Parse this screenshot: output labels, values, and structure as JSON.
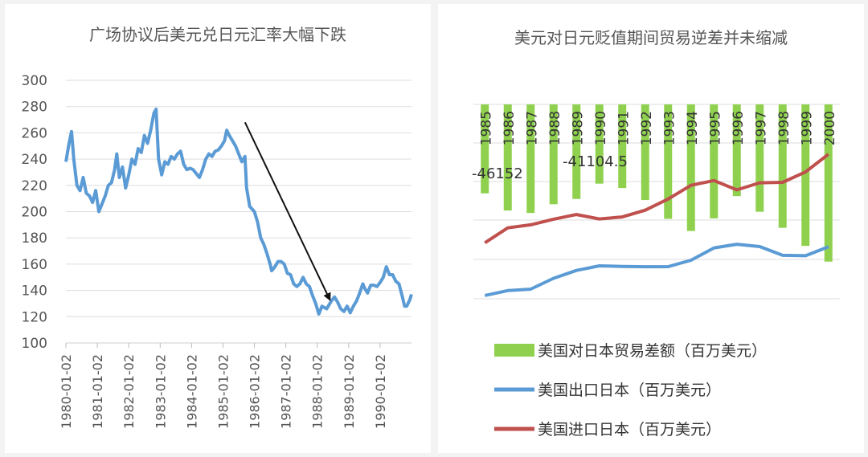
{
  "chart_data": [
    {
      "type": "line",
      "title": "广场协议后美元兑日元汇率大幅下跌",
      "xlabel": "",
      "ylabel": "",
      "ylim": [
        100,
        300
      ],
      "yticks": [
        100,
        120,
        140,
        160,
        180,
        200,
        220,
        240,
        260,
        280,
        300
      ],
      "xticks": [
        "1980-01-02",
        "1981-01-02",
        "1982-01-02",
        "1983-01-02",
        "1984-01-02",
        "1985-01-02",
        "1986-01-02",
        "1987-01-02",
        "1988-01-02",
        "1989-01-02",
        "1990-01-02"
      ],
      "grid": true,
      "series": [
        {
          "color": "#5b9bd5",
          "points": [
            [
              1980.0,
              238
            ],
            [
              1980.1,
              252
            ],
            [
              1980.18,
              261
            ],
            [
              1980.25,
              240
            ],
            [
              1980.35,
              220
            ],
            [
              1980.45,
              216
            ],
            [
              1980.55,
              226
            ],
            [
              1980.65,
              214
            ],
            [
              1980.75,
              212
            ],
            [
              1980.85,
              207
            ],
            [
              1980.95,
              216
            ],
            [
              1981.05,
              200
            ],
            [
              1981.15,
              206
            ],
            [
              1981.25,
              212
            ],
            [
              1981.35,
              220
            ],
            [
              1981.45,
              222
            ],
            [
              1981.55,
              232
            ],
            [
              1981.62,
              244
            ],
            [
              1981.7,
              226
            ],
            [
              1981.8,
              234
            ],
            [
              1981.9,
              218
            ],
            [
              1982.0,
              228
            ],
            [
              1982.1,
              240
            ],
            [
              1982.2,
              236
            ],
            [
              1982.3,
              248
            ],
            [
              1982.4,
              245
            ],
            [
              1982.5,
              258
            ],
            [
              1982.6,
              252
            ],
            [
              1982.7,
              262
            ],
            [
              1982.8,
              275
            ],
            [
              1982.87,
              278
            ],
            [
              1982.95,
              240
            ],
            [
              1983.05,
              228
            ],
            [
              1983.15,
              238
            ],
            [
              1983.25,
              236
            ],
            [
              1983.35,
              242
            ],
            [
              1983.45,
              240
            ],
            [
              1983.55,
              244
            ],
            [
              1983.65,
              246
            ],
            [
              1983.75,
              236
            ],
            [
              1983.85,
              232
            ],
            [
              1983.95,
              233
            ],
            [
              1984.05,
              232
            ],
            [
              1984.15,
              229
            ],
            [
              1984.25,
              226
            ],
            [
              1984.35,
              232
            ],
            [
              1984.45,
              240
            ],
            [
              1984.55,
              244
            ],
            [
              1984.65,
              242
            ],
            [
              1984.75,
              246
            ],
            [
              1984.85,
              247
            ],
            [
              1984.95,
              250
            ],
            [
              1985.05,
              254
            ],
            [
              1985.12,
              262
            ],
            [
              1985.2,
              258
            ],
            [
              1985.3,
              254
            ],
            [
              1985.4,
              250
            ],
            [
              1985.5,
              244
            ],
            [
              1985.6,
              238
            ],
            [
              1985.7,
              242
            ],
            [
              1985.75,
              218
            ],
            [
              1985.85,
              204
            ],
            [
              1986.0,
              200
            ],
            [
              1986.1,
              192
            ],
            [
              1986.2,
              180
            ],
            [
              1986.3,
              175
            ],
            [
              1986.4,
              168
            ],
            [
              1986.5,
              160
            ],
            [
              1986.55,
              155
            ],
            [
              1986.65,
              158
            ],
            [
              1986.75,
              162
            ],
            [
              1986.85,
              162
            ],
            [
              1986.95,
              160
            ],
            [
              1987.05,
              153
            ],
            [
              1987.15,
              152
            ],
            [
              1987.25,
              145
            ],
            [
              1987.35,
              143
            ],
            [
              1987.45,
              145
            ],
            [
              1987.55,
              150
            ],
            [
              1987.65,
              145
            ],
            [
              1987.75,
              143
            ],
            [
              1987.85,
              136
            ],
            [
              1987.95,
              130
            ],
            [
              1988.05,
              122
            ],
            [
              1988.15,
              128
            ],
            [
              1988.3,
              126
            ],
            [
              1988.45,
              132
            ],
            [
              1988.55,
              135
            ],
            [
              1988.65,
              131
            ],
            [
              1988.75,
              126
            ],
            [
              1988.85,
              124
            ],
            [
              1988.95,
              128
            ],
            [
              1989.05,
              123
            ],
            [
              1989.15,
              128
            ],
            [
              1989.25,
              132
            ],
            [
              1989.35,
              138
            ],
            [
              1989.45,
              145
            ],
            [
              1989.5,
              142
            ],
            [
              1989.6,
              138
            ],
            [
              1989.7,
              144
            ],
            [
              1989.8,
              144
            ],
            [
              1989.9,
              143
            ],
            [
              1990.0,
              146
            ],
            [
              1990.1,
              150
            ],
            [
              1990.2,
              158
            ],
            [
              1990.3,
              152
            ],
            [
              1990.4,
              152
            ],
            [
              1990.5,
              147
            ],
            [
              1990.6,
              145
            ],
            [
              1990.7,
              136
            ],
            [
              1990.78,
              128
            ],
            [
              1990.85,
              128
            ],
            [
              1990.95,
              133
            ],
            [
              1991.0,
              137
            ]
          ]
        }
      ],
      "annotations": [
        "arrow"
      ]
    },
    {
      "type": "bar+line",
      "title": "美元对日元贬值期间贸易逆差并未缩减",
      "categories": [
        "1985",
        "1986",
        "1987",
        "1988",
        "1989",
        "1990",
        "1991",
        "1992",
        "1993",
        "1994",
        "1995",
        "1996",
        "1997",
        "1998",
        "1999",
        "2000"
      ],
      "data_labels": [
        "-46152",
        "-41104.5"
      ],
      "legend_position": "bottom",
      "series": [
        {
          "name": "美国对日本贸易差额（百万美元）",
          "type": "bar",
          "color": "#8fd14f",
          "values": [
            -46152,
            -55029,
            -56326,
            -51794,
            -49059,
            -41104.5,
            -43385,
            -49601,
            -59355,
            -65669,
            -59137,
            -47580,
            -55686,
            -64014,
            -73398,
            -81555
          ]
        },
        {
          "name": "美国出口日本（百万美元）",
          "type": "line",
          "color": "#5b9bd5",
          "values": [
            22600,
            26900,
            28200,
            37700,
            44600,
            48600,
            48100,
            47800,
            47900,
            53500,
            64300,
            67500,
            65500,
            57800,
            57500,
            65300
          ]
        },
        {
          "name": "美国进口日本（百万美元）",
          "type": "line",
          "color": "#c0504d",
          "values": [
            68800,
            81900,
            84600,
            89500,
            93600,
            89700,
            91500,
            97400,
            107200,
            119200,
            123400,
            115200,
            121400,
            121800,
            130900,
            146500
          ]
        }
      ]
    }
  ]
}
